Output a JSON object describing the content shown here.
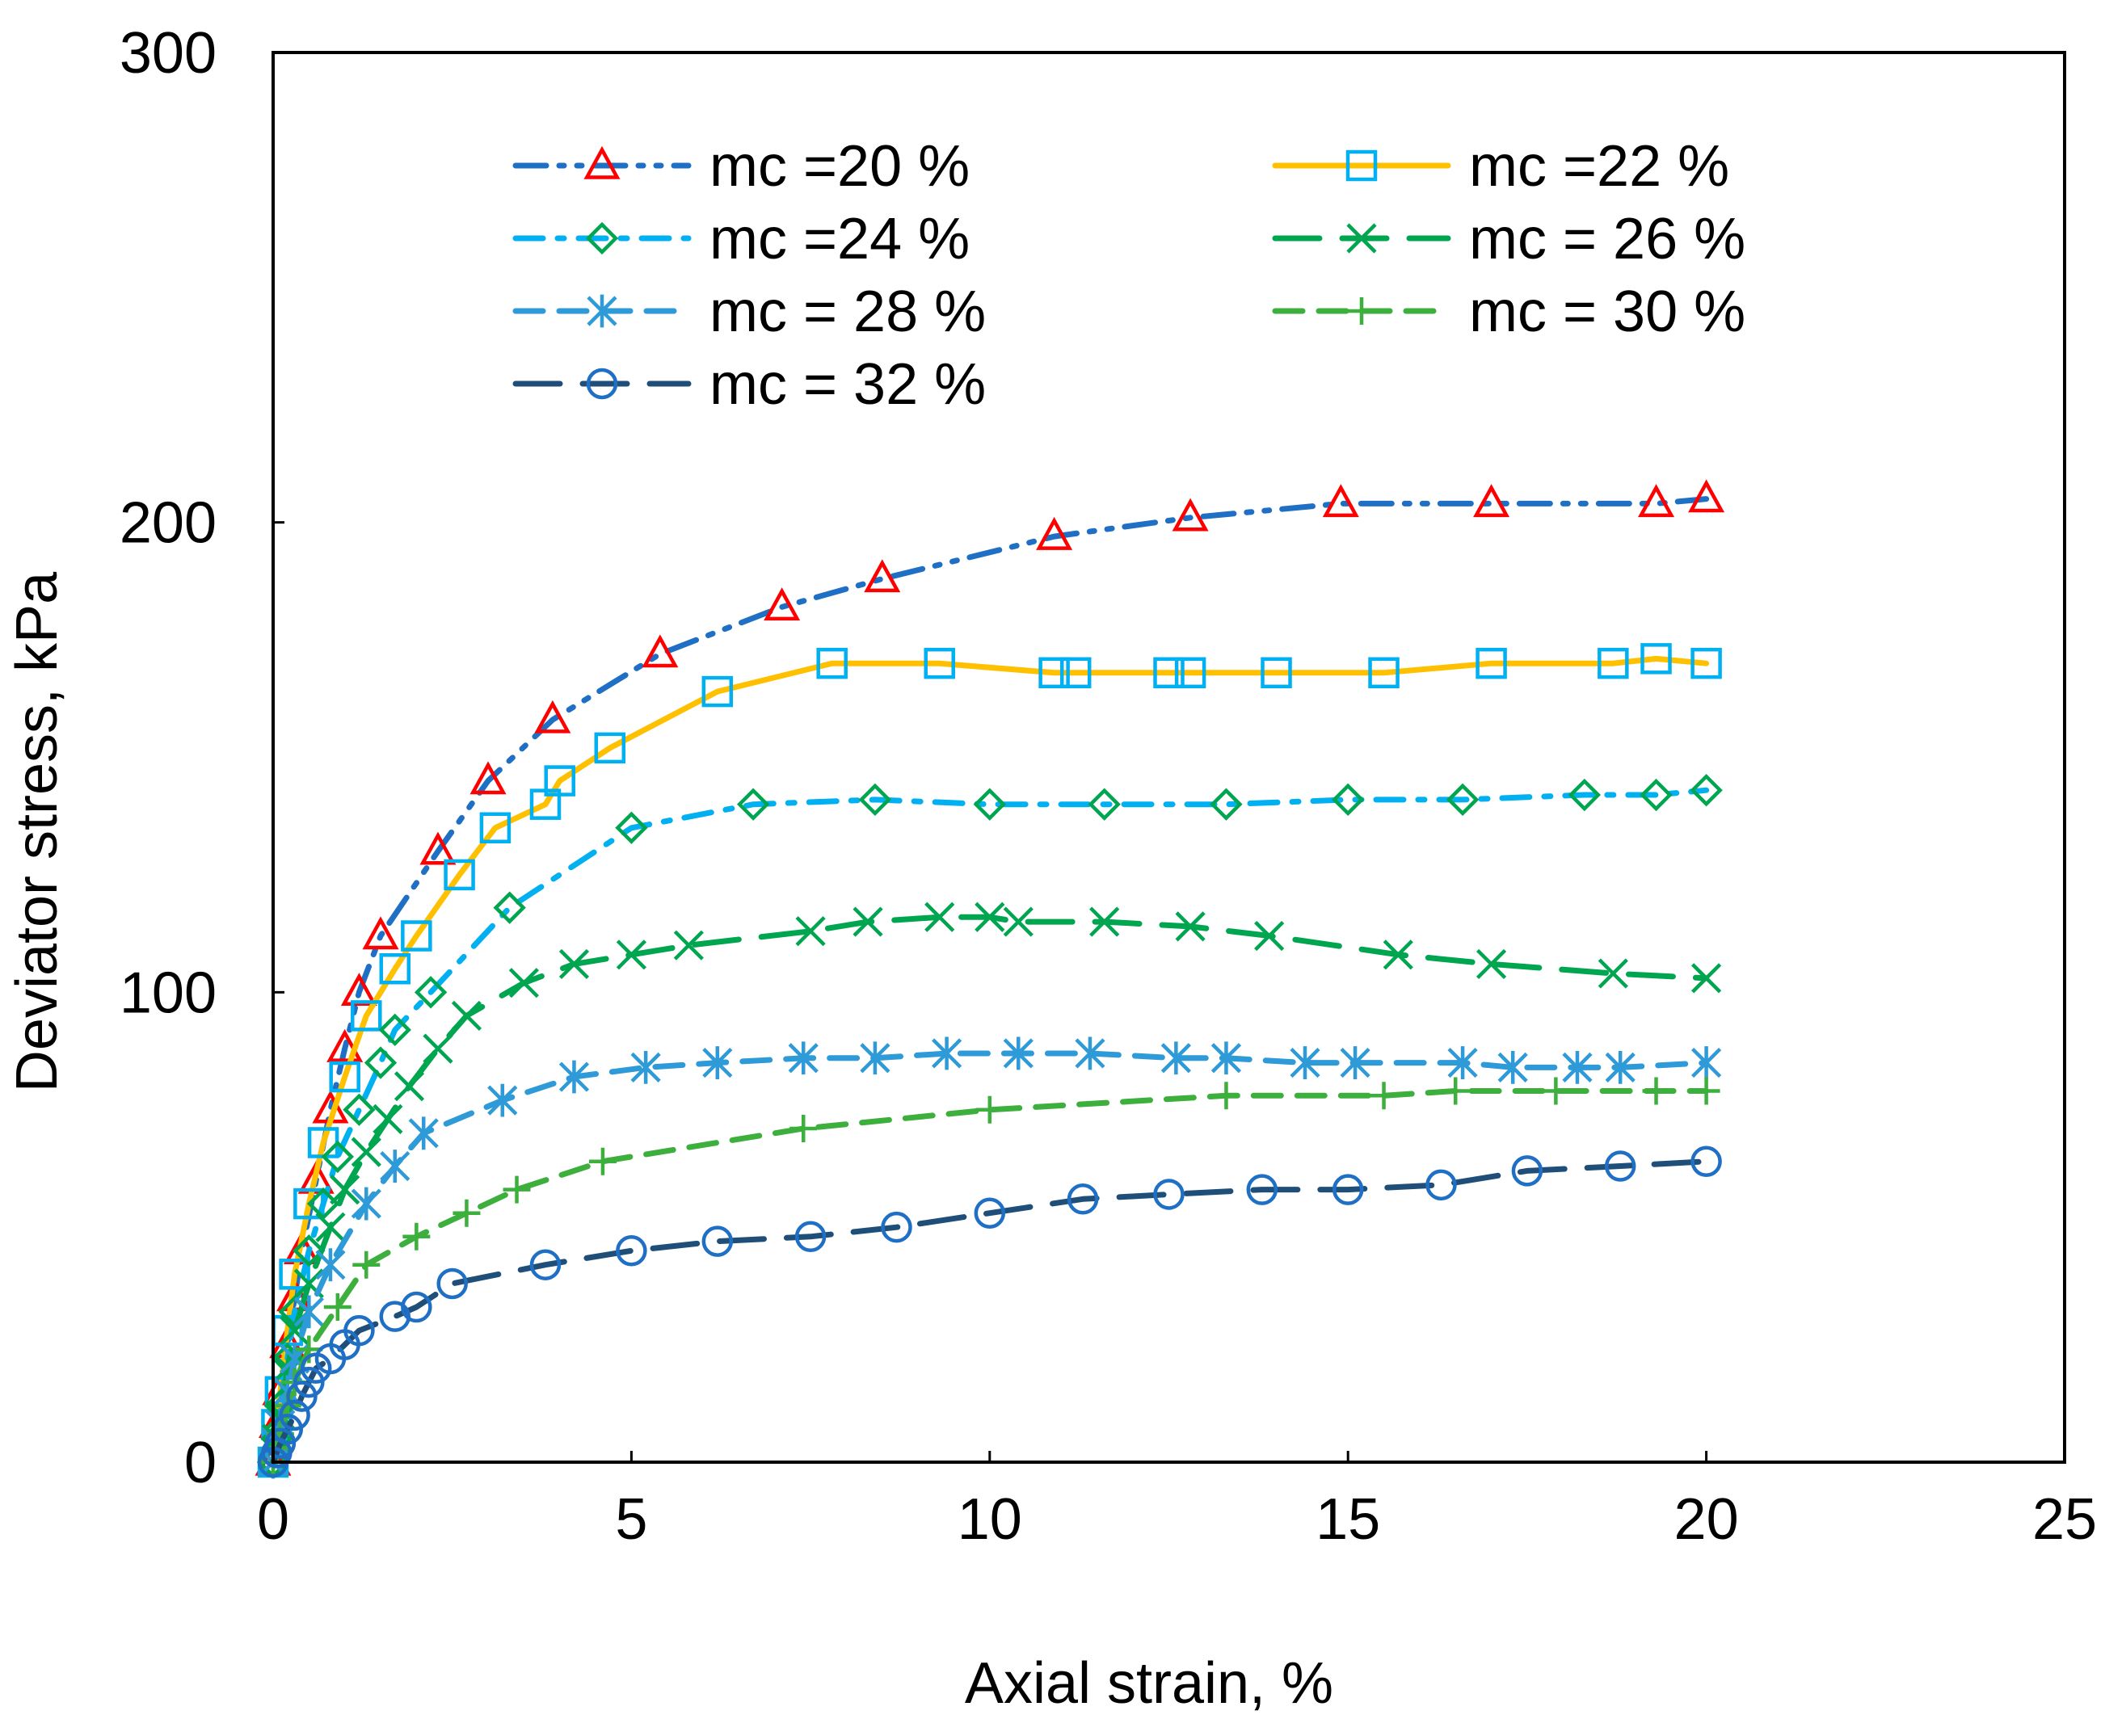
{
  "chart_data": {
    "type": "line",
    "title": "",
    "xlabel": "Axial strain, %",
    "ylabel": "Deviator stress, kPa",
    "xlim": [
      0,
      25
    ],
    "ylim": [
      0,
      300
    ],
    "xticks": [
      "0",
      "5",
      "10",
      "15",
      "20",
      "25"
    ],
    "yticks": [
      "0",
      "100",
      "200",
      "300"
    ],
    "grid": false,
    "legend_position": "top",
    "series": [
      {
        "name": "mc =20 %",
        "line_color": "#1F6FC5",
        "marker_color": "#FF0000",
        "marker": "triangle",
        "dash": "dash-dot-dot",
        "x": [
          0,
          0.05,
          0.1,
          0.2,
          0.3,
          0.4,
          0.6,
          0.8,
          1.0,
          1.2,
          1.5,
          2.3,
          3.0,
          3.9,
          5.4,
          7.1,
          8.5,
          10.9,
          12.8,
          14.9,
          17.0,
          19.3,
          20.0
        ],
        "y": [
          0,
          8,
          15,
          25,
          35,
          45,
          60,
          75,
          88,
          100,
          112,
          130,
          145,
          158,
          172,
          182,
          188,
          197,
          201,
          204,
          204,
          204,
          205
        ]
      },
      {
        "name": "mc =22 %",
        "line_color": "#FFC000",
        "marker_color": "#00B0F0",
        "marker": "square",
        "dash": "solid",
        "x": [
          0,
          0.05,
          0.1,
          0.2,
          0.3,
          0.5,
          0.7,
          1.0,
          1.3,
          1.7,
          2.0,
          2.6,
          3.1,
          3.8,
          4.0,
          4.7,
          6.2,
          7.8,
          9.3,
          10.9,
          11.2,
          12.5,
          12.8,
          14.0,
          15.5,
          17.0,
          18.7,
          19.3,
          20.0
        ],
        "y": [
          0,
          8,
          15,
          28,
          40,
          55,
          68,
          82,
          95,
          105,
          112,
          125,
          135,
          140,
          145,
          152,
          164,
          170,
          170,
          168,
          168,
          168,
          168,
          168,
          168,
          170,
          170,
          171,
          170
        ]
      },
      {
        "name": "mc =24 %",
        "line_color": "#00B0F0",
        "marker_color": "#00A550",
        "marker": "diamond",
        "dash": "dash-dot",
        "x": [
          0,
          0.05,
          0.1,
          0.2,
          0.3,
          0.5,
          0.7,
          0.9,
          1.2,
          1.5,
          1.7,
          2.2,
          3.3,
          5.0,
          6.7,
          8.4,
          10.0,
          11.6,
          13.3,
          15.0,
          16.6,
          18.3,
          19.3,
          20.0
        ],
        "y": [
          0,
          5,
          12,
          22,
          32,
          45,
          55,
          65,
          75,
          85,
          92,
          100,
          118,
          135,
          140,
          141,
          140,
          140,
          140,
          141,
          141,
          142,
          142,
          143
        ]
      },
      {
        "name": "mc = 26 %",
        "line_color": "#00A550",
        "marker_color": "#00A550",
        "marker": "x",
        "dash": "long-dash",
        "x": [
          0,
          0.05,
          0.1,
          0.2,
          0.3,
          0.5,
          0.8,
          1.0,
          1.3,
          1.6,
          1.9,
          2.3,
          2.7,
          3.5,
          4.2,
          5.0,
          5.8,
          7.5,
          8.3,
          9.3,
          10.0,
          10.4,
          11.6,
          12.8,
          13.9,
          15.7,
          17.0,
          18.7,
          20.0
        ],
        "y": [
          0,
          5,
          10,
          20,
          28,
          38,
          50,
          58,
          66,
          73,
          80,
          88,
          95,
          102,
          106,
          108,
          110,
          113,
          115,
          116,
          116,
          115,
          115,
          114,
          112,
          108,
          106,
          104,
          103
        ]
      },
      {
        "name": "mc = 28 %",
        "line_color": "#2E9AD8",
        "marker_color": "#2E9AD8",
        "marker": "asterisk",
        "dash": "dash",
        "x": [
          0,
          0.05,
          0.1,
          0.2,
          0.3,
          0.5,
          0.8,
          1.3,
          1.7,
          2.1,
          3.2,
          4.2,
          5.2,
          6.2,
          7.4,
          8.4,
          9.4,
          10.4,
          11.4,
          12.6,
          13.3,
          14.4,
          15.1,
          16.6,
          17.3,
          18.2,
          18.8,
          20.0
        ],
        "y": [
          0,
          4,
          8,
          15,
          22,
          32,
          42,
          55,
          63,
          70,
          77,
          82,
          84,
          85,
          86,
          86,
          87,
          87,
          87,
          86,
          86,
          85,
          85,
          85,
          84,
          84,
          84,
          85
        ]
      },
      {
        "name": "mc = 30 %",
        "line_color": "#3DAF3D",
        "marker_color": "#3DAF3D",
        "marker": "plus",
        "dash": "dash",
        "x": [
          0,
          0.05,
          0.1,
          0.2,
          0.3,
          0.5,
          0.9,
          1.3,
          2.0,
          2.7,
          3.4,
          4.6,
          7.4,
          10.0,
          13.3,
          15.5,
          16.5,
          17.9,
          19.3,
          20.0
        ],
        "y": [
          0,
          3,
          6,
          12,
          17,
          24,
          33,
          42,
          48,
          53,
          58,
          64,
          71,
          75,
          78,
          78,
          79,
          79,
          79,
          79
        ]
      },
      {
        "name": "mc = 32 %",
        "line_color": "#1F4E79",
        "marker_color": "#1F6FC5",
        "marker": "circle",
        "dash": "long-dash",
        "x": [
          0,
          0.05,
          0.1,
          0.2,
          0.3,
          0.4,
          0.5,
          0.6,
          0.8,
          1.0,
          1.2,
          1.7,
          2.0,
          2.5,
          3.8,
          5.0,
          6.2,
          7.5,
          8.7,
          10.0,
          11.3,
          12.5,
          13.8,
          15.0,
          16.3,
          17.5,
          18.8,
          20.0
        ],
        "y": [
          0,
          2,
          4,
          7,
          10,
          14,
          17,
          20,
          22,
          25,
          28,
          31,
          33,
          38,
          42,
          45,
          47,
          48,
          50,
          53,
          56,
          57,
          58,
          58,
          59,
          62,
          63,
          64
        ]
      }
    ]
  }
}
